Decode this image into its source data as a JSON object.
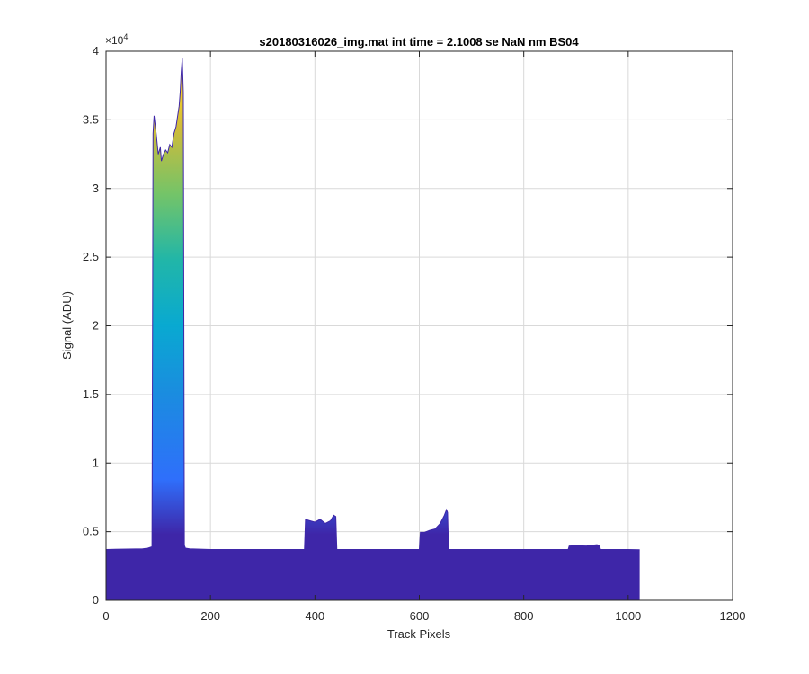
{
  "chart_data": {
    "type": "area",
    "title": "s20180316026_img.mat int time = 2.1008 se  NaN nm BS04",
    "xlabel": "Track Pixels",
    "ylabel": "Signal (ADU)",
    "xlim": [
      0,
      1200
    ],
    "ylim": [
      0,
      40000
    ],
    "y_exponent_label": "×10",
    "y_exponent_power": "4",
    "xticks": [
      0,
      200,
      400,
      600,
      800,
      1000,
      1200
    ],
    "xtick_labels": [
      "0",
      "200",
      "400",
      "600",
      "800",
      "1000",
      "1200"
    ],
    "yticks": [
      0,
      5000,
      10000,
      15000,
      20000,
      25000,
      30000,
      35000,
      40000
    ],
    "ytick_labels": [
      "0",
      "0.5",
      "1",
      "1.5",
      "2",
      "2.5",
      "3",
      "3.5",
      "4"
    ],
    "grid": true,
    "legend": "none",
    "colormap": [
      "#3e26a8",
      "#2f6ffb",
      "#1aa2db",
      "#21b6a8",
      "#74c468",
      "#cfbb3a",
      "#fbd424",
      "#f9fb0e"
    ],
    "series": [
      {
        "x": [
          0,
          70,
          80,
          88,
          90,
          92,
          96,
          100,
          104,
          106,
          110,
          114,
          118,
          122,
          126,
          130,
          134,
          138,
          140,
          142,
          144,
          146,
          148,
          150,
          152,
          160,
          200,
          300,
          380,
          382,
          390,
          400,
          410,
          420,
          430,
          436,
          440,
          442,
          450,
          500,
          600,
          602,
          610,
          620,
          630,
          640,
          648,
          652,
          654,
          656,
          700,
          800,
          885,
          887,
          900,
          920,
          940,
          945,
          947,
          1000,
          1022
        ],
        "y": [
          3700,
          3750,
          3800,
          3900,
          34000,
          35300,
          34000,
          32500,
          33000,
          32000,
          32500,
          32800,
          32600,
          33200,
          33000,
          34000,
          34500,
          35500,
          36000,
          37000,
          38500,
          39500,
          37000,
          4000,
          3800,
          3750,
          3700,
          3700,
          3700,
          5900,
          5800,
          5700,
          5900,
          5600,
          5800,
          6200,
          6100,
          3700,
          3700,
          3700,
          3700,
          4950,
          4950,
          5100,
          5200,
          5600,
          6200,
          6600,
          6400,
          3700,
          3700,
          3700,
          3700,
          3950,
          3980,
          3950,
          4050,
          4000,
          3700,
          3700,
          3680
        ]
      }
    ]
  }
}
